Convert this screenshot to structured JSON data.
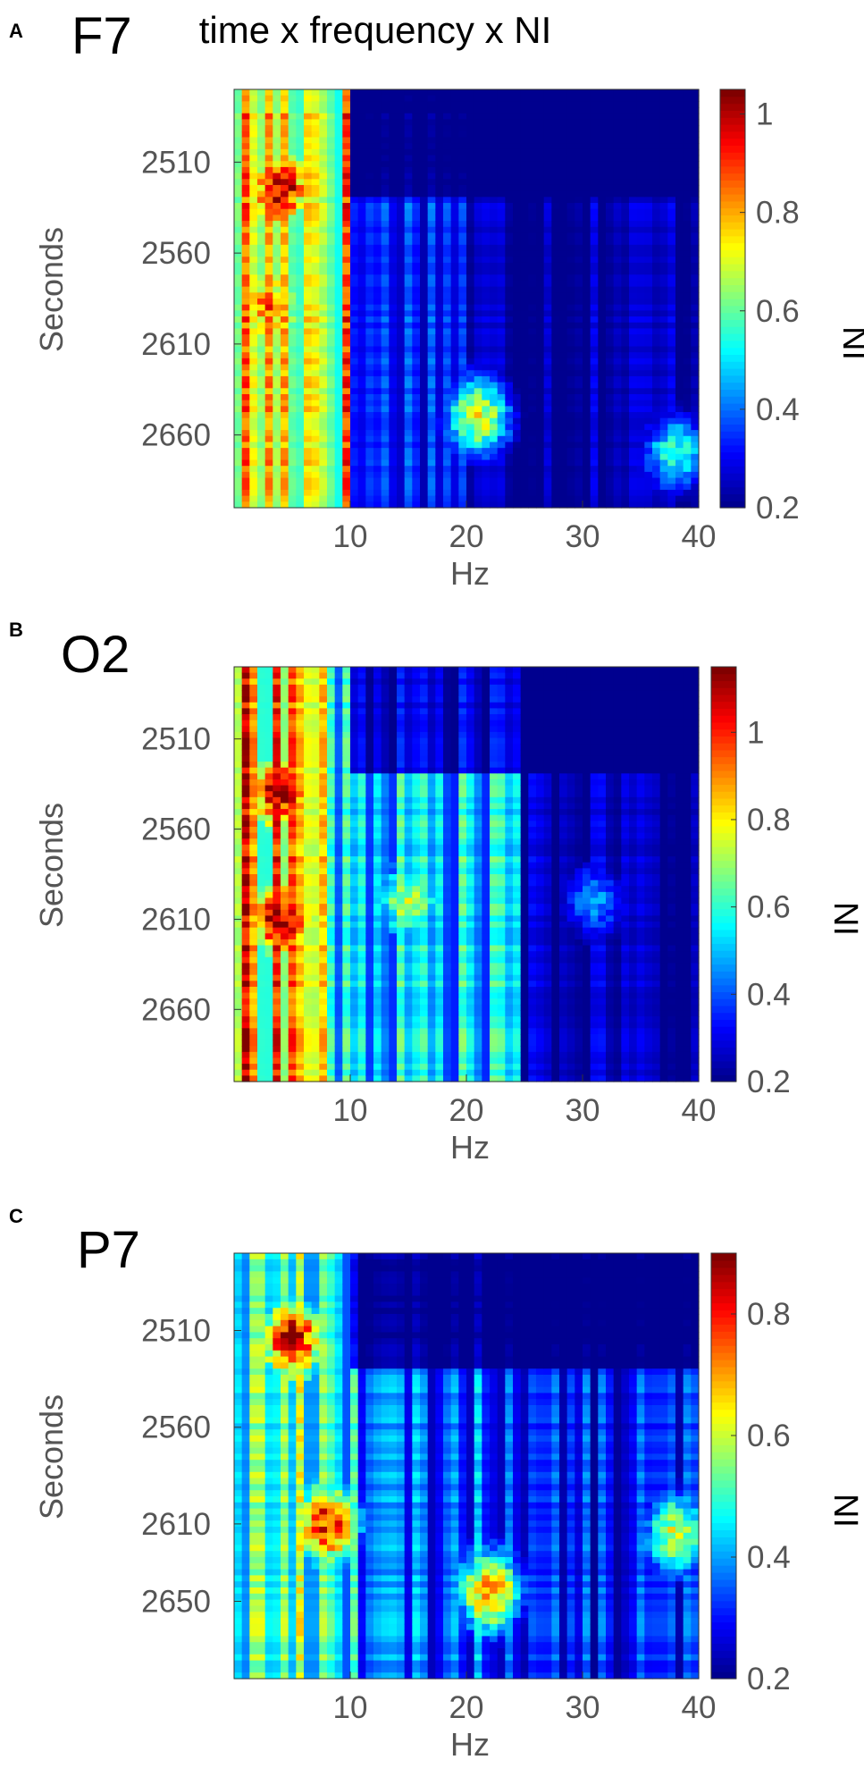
{
  "figure": {
    "title": "time x frequency x NI"
  },
  "colormap": [
    "#00008f",
    "#0000ff",
    "#0080ff",
    "#00ffff",
    "#80ff80",
    "#ffff00",
    "#ff8000",
    "#ff0000",
    "#800000"
  ],
  "chart_data": [
    {
      "type": "heatmap",
      "panel": "A",
      "name": "F7",
      "xlabel": "Hz",
      "ylabel": "Seconds",
      "colorbar_label": "NI",
      "xlim": [
        0,
        40
      ],
      "ylim": [
        2470,
        2700
      ],
      "xticks": [
        10,
        20,
        30,
        40
      ],
      "yticks": [
        2510,
        2560,
        2610,
        2660
      ],
      "clim": [
        0.2,
        1.05
      ],
      "cticks": [
        0.2,
        0.4,
        0.6,
        0.8,
        1
      ],
      "x_bands": [
        [
          0,
          10,
          0.92
        ],
        [
          10,
          20,
          0.42
        ],
        [
          20,
          40,
          0.3
        ]
      ],
      "hotspots": [
        {
          "x": 4,
          "y": 2525,
          "value": 1.0
        },
        {
          "x": 3,
          "y": 2590,
          "value": 0.85
        },
        {
          "x": 21,
          "y": 2650,
          "value": 0.7
        },
        {
          "x": 38,
          "y": 2670,
          "value": 0.55
        }
      ]
    },
    {
      "type": "heatmap",
      "panel": "B",
      "name": "O2",
      "xlabel": "Hz",
      "ylabel": "Seconds",
      "colorbar_label": "NI",
      "xlim": [
        0,
        40
      ],
      "ylim": [
        2470,
        2700
      ],
      "xticks": [
        10,
        20,
        30,
        40
      ],
      "yticks": [
        2510,
        2560,
        2610,
        2660
      ],
      "clim": [
        0.2,
        1.15
      ],
      "cticks": [
        0.2,
        0.4,
        0.6,
        0.8,
        1
      ],
      "x_bands": [
        [
          0,
          8,
          1.05
        ],
        [
          8,
          25,
          0.62
        ],
        [
          25,
          40,
          0.3
        ]
      ],
      "hotspots": [
        {
          "x": 4,
          "y": 2540,
          "value": 1.1
        },
        {
          "x": 4,
          "y": 2610,
          "value": 1.1
        },
        {
          "x": 15,
          "y": 2600,
          "value": 0.72
        },
        {
          "x": 31,
          "y": 2600,
          "value": 0.45
        }
      ]
    },
    {
      "type": "heatmap",
      "panel": "C",
      "name": "P7",
      "xlabel": "Hz",
      "ylabel": "Seconds",
      "colorbar_label": "NI",
      "xlim": [
        0,
        40
      ],
      "ylim": [
        2470,
        2690
      ],
      "xticks": [
        10,
        20,
        30,
        40
      ],
      "yticks": [
        2510,
        2560,
        2610,
        2650
      ],
      "clim": [
        0.2,
        0.9
      ],
      "cticks": [
        0.2,
        0.4,
        0.6,
        0.8
      ],
      "x_bands": [
        [
          0,
          11,
          0.62
        ],
        [
          11,
          25,
          0.42
        ],
        [
          25,
          40,
          0.36
        ]
      ],
      "hotspots": [
        {
          "x": 5,
          "y": 2515,
          "value": 0.85
        },
        {
          "x": 8,
          "y": 2610,
          "value": 0.8
        },
        {
          "x": 22,
          "y": 2645,
          "value": 0.7
        },
        {
          "x": 38,
          "y": 2615,
          "value": 0.6
        }
      ]
    }
  ]
}
